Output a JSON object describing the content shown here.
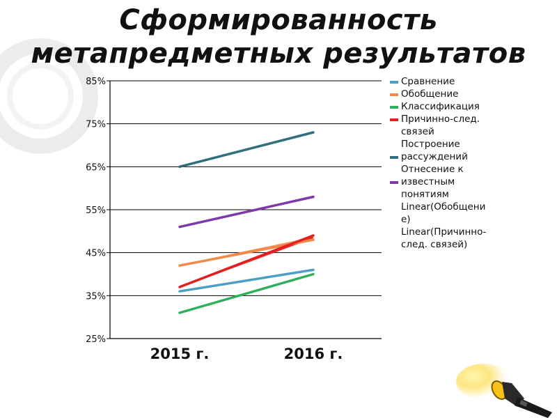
{
  "title": {
    "line1": "Сформированность",
    "line2": "метапредметных результатов"
  },
  "colors": {
    "background": "#ffffff",
    "decor_ring": "#ebebeb",
    "grid": "#000000",
    "text": "#111111"
  },
  "chart_data": {
    "type": "line",
    "title": "Сформированность метапредметных результатов",
    "categories": [
      "2015 г.",
      "2016 г."
    ],
    "y_ticks": [
      "25%",
      "35%",
      "45%",
      "55%",
      "65%",
      "75%",
      "85%"
    ],
    "ylim": [
      25,
      85
    ],
    "grid": true,
    "legend_position": "right",
    "series": [
      {
        "name": "Сравнение",
        "values": [
          36,
          41
        ],
        "color": "#4a9fc2"
      },
      {
        "name": "Обобщение",
        "values": [
          42,
          48
        ],
        "color": "#f0894a"
      },
      {
        "name": "Классификация",
        "values": [
          31,
          40
        ],
        "color": "#2eaf5c"
      },
      {
        "name": "Причинно-след. связей",
        "values": [
          37,
          49
        ],
        "color": "#e21f1f"
      },
      {
        "name": "Построение рассуждений",
        "values": [
          65,
          73
        ],
        "color": "#2f6f7f"
      },
      {
        "name": "Отнесение к известным понятиям",
        "values": [
          51,
          58
        ],
        "color": "#7d3aa8"
      }
    ],
    "trendlines": [
      {
        "name": "Linear(Обобщение)",
        "series": "Обобщение",
        "values": [
          42,
          48.5
        ]
      },
      {
        "name": "Linear(Причинно-след. связей)",
        "series": "Причинно-след. связей",
        "values": [
          37,
          48.5
        ]
      }
    ]
  },
  "legend": {
    "lines": [
      {
        "text": "Сравнение",
        "swatch": "#4a9fc2"
      },
      {
        "text": "Обобщение",
        "swatch": "#f0894a"
      },
      {
        "text": "Классификация",
        "swatch": "#2eaf5c"
      },
      {
        "text": "Причинно-след.",
        "swatch": "#e21f1f"
      },
      {
        "text": "связей",
        "swatch": ""
      },
      {
        "text": "Построение",
        "swatch": ""
      },
      {
        "text": "рассуждений",
        "swatch": "#2f6f7f"
      },
      {
        "text": "Отнесение к",
        "swatch": ""
      },
      {
        "text": "известным",
        "swatch": "#7d3aa8"
      },
      {
        "text": "понятиям",
        "swatch": ""
      },
      {
        "text": "Linear(Обобщени",
        "swatch": ""
      },
      {
        "text": "е)",
        "swatch": ""
      },
      {
        "text": "Linear(Причинно-",
        "swatch": ""
      },
      {
        "text": "след. связей)",
        "swatch": ""
      }
    ]
  },
  "decor": {
    "icon": "flashlight-icon",
    "background_shape": "ring-decoration"
  }
}
